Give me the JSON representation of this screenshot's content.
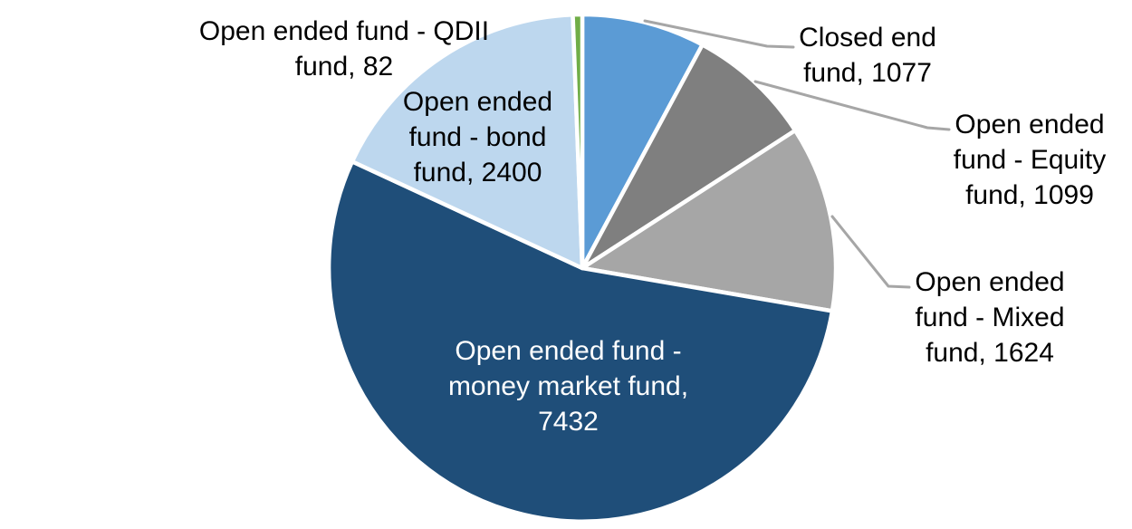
{
  "chart_data": {
    "type": "pie",
    "title": "",
    "background": "#FFFFFF",
    "total": 13714,
    "start_angle_deg": 0,
    "direction": "clockwise",
    "legend": "none",
    "leader_line_color": "#A6A6A6",
    "slices": [
      {
        "label": "Closed end fund",
        "value": 1077,
        "color": "#5B9BD5",
        "label_lines": [
          "Closed end",
          "fund, 1077"
        ],
        "label_color": "#000000"
      },
      {
        "label": "Open ended fund - Equity fund",
        "value": 1099,
        "color": "#7F7F7F",
        "label_lines": [
          "Open ended",
          "fund - Equity",
          "fund, 1099"
        ],
        "label_color": "#000000"
      },
      {
        "label": "Open ended fund - Mixed fund",
        "value": 1624,
        "color": "#A6A6A6",
        "label_lines": [
          "Open ended",
          "fund - Mixed",
          "fund, 1624"
        ],
        "label_color": "#000000"
      },
      {
        "label": "Open ended fund - money market fund",
        "value": 7432,
        "color": "#1F4E79",
        "label_lines": [
          "Open ended fund -",
          "money market fund,",
          "7432"
        ],
        "label_color": "#FFFFFF"
      },
      {
        "label": "Open ended fund - bond fund",
        "value": 2400,
        "color": "#BDD7EE",
        "label_lines": [
          "Open ended",
          "fund - bond",
          "fund, 2400"
        ],
        "label_color": "#000000"
      },
      {
        "label": "Open ended fund - QDII fund",
        "value": 82,
        "color": "#70AD47",
        "label_lines": [
          "Open ended fund - QDII",
          "fund, 82"
        ],
        "label_color": "#000000"
      }
    ]
  }
}
